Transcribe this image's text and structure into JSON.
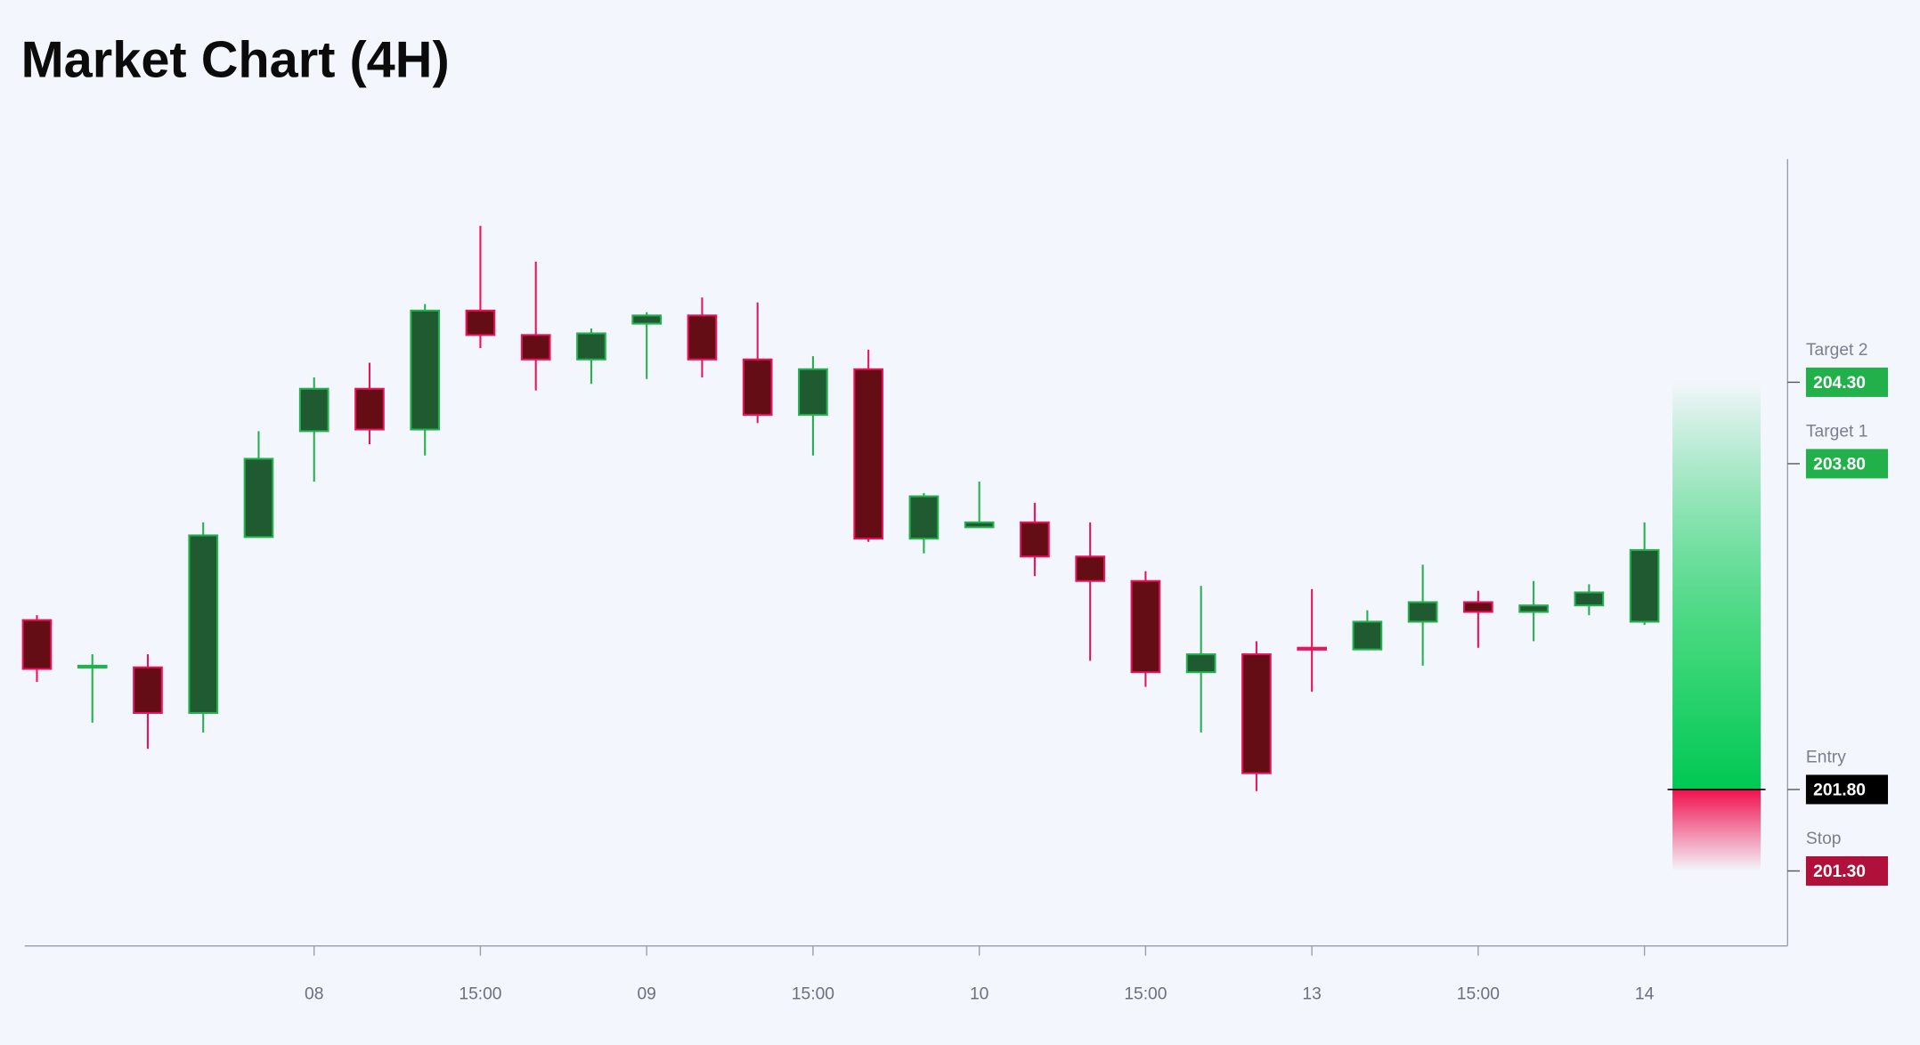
{
  "chart_data": {
    "type": "candlestick",
    "title": "Market Chart (4H)",
    "categories": [
      null,
      null,
      null,
      null,
      null,
      "08",
      null,
      null,
      "15:00",
      null,
      null,
      "09",
      null,
      null,
      "15:00",
      null,
      null,
      "10",
      null,
      null,
      "15:00",
      null,
      null,
      "13",
      null,
      null,
      "15:00",
      null,
      null,
      "14"
    ],
    "open": [
      202.84,
      202.55,
      202.55,
      202.27,
      203.35,
      204.0,
      204.26,
      204.01,
      204.74,
      204.59,
      204.44,
      204.66,
      204.71,
      204.44,
      204.1,
      204.38,
      203.34,
      203.41,
      203.44,
      203.23,
      203.08,
      202.52,
      202.63,
      202.67,
      202.66,
      202.83,
      202.95,
      202.89,
      202.93,
      202.83
    ],
    "high": [
      202.87,
      202.63,
      202.63,
      203.44,
      204.0,
      204.33,
      204.42,
      204.78,
      205.26,
      205.04,
      204.63,
      204.73,
      204.82,
      204.79,
      204.46,
      204.5,
      203.62,
      203.69,
      203.56,
      203.44,
      203.14,
      203.05,
      202.71,
      203.03,
      202.9,
      203.18,
      203.02,
      203.08,
      203.06,
      203.44
    ],
    "low": [
      202.46,
      202.21,
      202.05,
      202.15,
      203.35,
      203.69,
      203.92,
      203.85,
      204.51,
      204.25,
      204.29,
      204.32,
      204.33,
      204.05,
      203.85,
      203.32,
      203.25,
      203.41,
      203.11,
      202.59,
      202.43,
      202.15,
      201.79,
      202.4,
      202.66,
      202.56,
      202.67,
      202.71,
      202.87,
      202.81
    ],
    "close": [
      202.54,
      202.56,
      202.27,
      203.36,
      203.83,
      204.26,
      204.01,
      204.74,
      204.59,
      204.44,
      204.6,
      204.71,
      204.44,
      204.1,
      204.38,
      203.34,
      203.6,
      203.44,
      203.23,
      203.08,
      202.52,
      202.63,
      201.9,
      202.66,
      202.83,
      202.95,
      202.89,
      202.93,
      203.01,
      203.27
    ],
    "up_color": "#22b14c",
    "up_fill": "#1f5a31",
    "down_color": "#e8135a",
    "down_fill": "#650d15",
    "ylim": [
      200.84,
      205.67
    ],
    "levels": [
      {
        "name": "Target 2",
        "value": 204.3,
        "label": "204.30",
        "color": "#22b04b"
      },
      {
        "name": "Target 1",
        "value": 203.8,
        "label": "203.80",
        "color": "#22b04b"
      },
      {
        "name": "Entry",
        "value": 201.8,
        "label": "201.80",
        "color": "#000000"
      },
      {
        "name": "Stop",
        "value": 201.3,
        "label": "201.30",
        "color": "#b0103a"
      }
    ]
  }
}
